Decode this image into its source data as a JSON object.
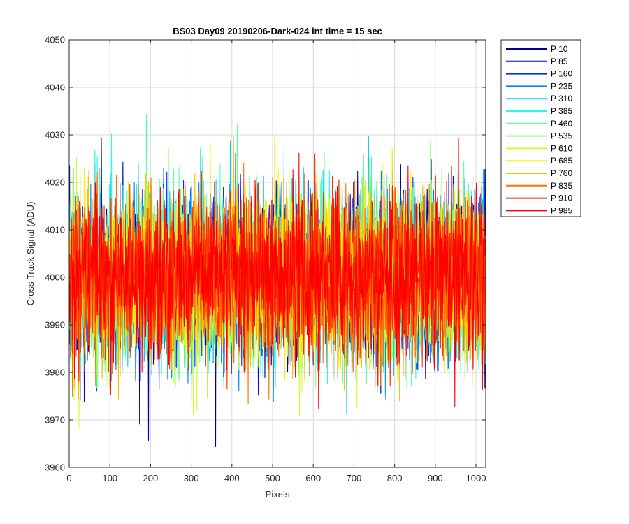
{
  "chart_data": {
    "type": "line",
    "title": "BS03 Day09 20190206-Dark-024 int time = 15 sec",
    "xlabel": "Pixels",
    "ylabel": "Cross Track Signal (ADU)",
    "xlim": [
      0,
      1024
    ],
    "ylim": [
      3960,
      4050
    ],
    "xticks": [
      "0",
      "100",
      "200",
      "300",
      "400",
      "500",
      "600",
      "700",
      "800",
      "900",
      "1000"
    ],
    "yticks": [
      "3960",
      "3970",
      "3980",
      "3990",
      "4000",
      "4010",
      "4020",
      "4030",
      "4040",
      "4050"
    ],
    "grid": true,
    "legend_position": "outside-top-right",
    "noise_model": {
      "n_points": 1024,
      "mean": 4000,
      "std_dev": 8.5
    },
    "series": [
      {
        "name": "P 10",
        "color": "#00008F"
      },
      {
        "name": "P 85",
        "color": "#0000DF"
      },
      {
        "name": "P 160",
        "color": "#0030FF"
      },
      {
        "name": "P 235",
        "color": "#0080FF"
      },
      {
        "name": "P 310",
        "color": "#00CFFF"
      },
      {
        "name": "P 385",
        "color": "#20FFDF"
      },
      {
        "name": "P 460",
        "color": "#60FFB0"
      },
      {
        "name": "P 535",
        "color": "#90FF70"
      },
      {
        "name": "P 610",
        "color": "#CFFF30"
      },
      {
        "name": "P 685",
        "color": "#FFEF00"
      },
      {
        "name": "P 760",
        "color": "#FFBF00"
      },
      {
        "name": "P 835",
        "color": "#FF7000"
      },
      {
        "name": "P 910",
        "color": "#FF3000"
      },
      {
        "name": "P 985",
        "color": "#FF0000"
      }
    ]
  }
}
